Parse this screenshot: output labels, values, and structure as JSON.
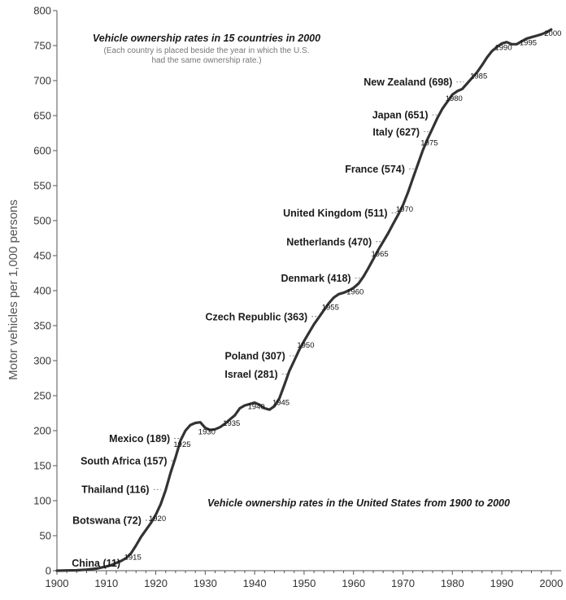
{
  "chart_data": {
    "type": "line",
    "title": "Vehicle ownership rates in 15 countries in 2000",
    "subtitle_lines": [
      "(Each country is placed beside the year in which the U.S.",
      "had the same ownership rate.)"
    ],
    "annotation": "Vehicle ownership rates in the United States from 1900 to 2000",
    "ylabel": "Motor vehicles per 1,000 persons",
    "xlabel": "",
    "xlim": [
      1900,
      2002
    ],
    "ylim": [
      0,
      800
    ],
    "x_ticks": [
      "1900",
      "1910",
      "1920",
      "1930",
      "1940",
      "1950",
      "1960",
      "1970",
      "1980",
      "1990",
      "2000"
    ],
    "y_ticks": [
      "0",
      "50",
      "100",
      "150",
      "200",
      "250",
      "300",
      "350",
      "400",
      "450",
      "500",
      "550",
      "600",
      "650",
      "700",
      "750",
      "800"
    ],
    "grid": false,
    "series": [
      {
        "name": "United States",
        "x": [
          1900,
          1902,
          1904,
          1906,
          1908,
          1910,
          1911,
          1912,
          1913,
          1914,
          1915,
          1916,
          1917,
          1918,
          1919,
          1920,
          1921,
          1922,
          1923,
          1924,
          1925,
          1926,
          1927,
          1928,
          1929,
          1930,
          1931,
          1932,
          1933,
          1934,
          1935,
          1936,
          1937,
          1938,
          1939,
          1940,
          1941,
          1942,
          1943,
          1944,
          1945,
          1946,
          1947,
          1948,
          1949,
          1950,
          1951,
          1952,
          1953,
          1954,
          1955,
          1956,
          1957,
          1958,
          1959,
          1960,
          1961,
          1962,
          1963,
          1964,
          1965,
          1966,
          1967,
          1968,
          1969,
          1970,
          1971,
          1972,
          1973,
          1974,
          1975,
          1976,
          1977,
          1978,
          1979,
          1980,
          1981,
          1982,
          1983,
          1984,
          1985,
          1986,
          1987,
          1988,
          1989,
          1990,
          1991,
          1992,
          1993,
          1994,
          1995,
          1996,
          1997,
          1998,
          1999,
          2000
        ],
        "values": [
          0,
          0.3,
          0.6,
          1.5,
          3,
          6,
          8,
          11,
          14,
          18,
          25,
          36,
          48,
          58,
          68,
          80,
          95,
          115,
          140,
          162,
          186,
          200,
          208,
          211,
          212,
          204,
          201,
          202,
          205,
          210,
          216,
          222,
          232,
          236,
          238,
          240,
          237,
          232,
          230,
          235,
          246,
          265,
          285,
          300,
          315,
          328,
          340,
          352,
          362,
          372,
          382,
          390,
          395,
          397,
          400,
          404,
          410,
          420,
          432,
          445,
          458,
          470,
          482,
          495,
          508,
          522,
          540,
          560,
          580,
          600,
          617,
          632,
          647,
          660,
          670,
          680,
          685,
          688,
          696,
          704,
          712,
          722,
          733,
          742,
          748,
          753,
          755,
          752,
          752,
          756,
          760,
          762,
          764,
          766,
          769,
          773
        ]
      }
    ],
    "year_labels": [
      {
        "label": "1915",
        "x": 1915,
        "y": 25
      },
      {
        "label": "1920",
        "x": 1920,
        "y": 80
      },
      {
        "label": "1925",
        "x": 1925,
        "y": 186
      },
      {
        "label": "1930",
        "x": 1930,
        "y": 204
      },
      {
        "label": "1935",
        "x": 1935,
        "y": 216
      },
      {
        "label": "1940",
        "x": 1940,
        "y": 240
      },
      {
        "label": "1945",
        "x": 1945,
        "y": 246
      },
      {
        "label": "1950",
        "x": 1950,
        "y": 328
      },
      {
        "label": "1955",
        "x": 1955,
        "y": 382
      },
      {
        "label": "1960",
        "x": 1960,
        "y": 404
      },
      {
        "label": "1965",
        "x": 1965,
        "y": 458
      },
      {
        "label": "1970",
        "x": 1970,
        "y": 522
      },
      {
        "label": "1975",
        "x": 1975,
        "y": 617
      },
      {
        "label": "1980",
        "x": 1980,
        "y": 680
      },
      {
        "label": "1985",
        "x": 1985,
        "y": 712
      },
      {
        "label": "1990",
        "x": 1990,
        "y": 753
      },
      {
        "label": "1995",
        "x": 1995,
        "y": 760
      },
      {
        "label": "2000",
        "x": 2000,
        "y": 773
      }
    ],
    "countries": [
      {
        "label": "China (11)",
        "value": 11,
        "us_year": 1912
      },
      {
        "label": "Botswana (72)",
        "value": 72,
        "us_year": 1919.4
      },
      {
        "label": "Thailand (116)",
        "value": 116,
        "us_year": 1921
      },
      {
        "label": "South Africa (157)",
        "value": 157,
        "us_year": 1923.7
      },
      {
        "label": "Mexico (189)",
        "value": 189,
        "us_year": 1925.2
      },
      {
        "label": "Israel (281)",
        "value": 281,
        "us_year": 1947
      },
      {
        "label": "Poland (307)",
        "value": 307,
        "us_year": 1948.5
      },
      {
        "label": "Czech Republic (363)",
        "value": 363,
        "us_year": 1953
      },
      {
        "label": "Denmark (418)",
        "value": 418,
        "us_year": 1961.8
      },
      {
        "label": "Netherlands (470)",
        "value": 470,
        "us_year": 1966
      },
      {
        "label": "United Kingdom (511)",
        "value": 511,
        "us_year": 1969.2
      },
      {
        "label": "France (574)",
        "value": 574,
        "us_year": 1972.7
      },
      {
        "label": "Italy (627)",
        "value": 627,
        "us_year": 1975.7
      },
      {
        "label": "Japan (651)",
        "value": 651,
        "us_year": 1977.4
      },
      {
        "label": "New Zealand (698)",
        "value": 698,
        "us_year": 1982.3
      }
    ]
  }
}
